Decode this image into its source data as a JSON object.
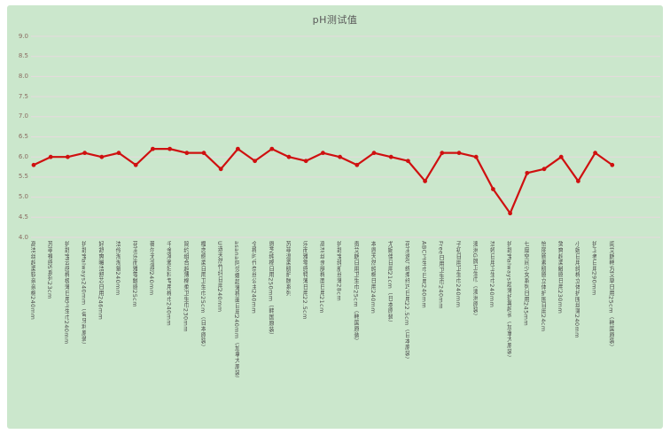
{
  "page": {
    "background": "#ffffff"
  },
  "panel": {
    "background": "#cbe7cc"
  },
  "chart_data": {
    "type": "line",
    "title": "pH测试值",
    "ylim": [
      4.0,
      9.0
    ],
    "y_tick_step": 0.5,
    "y_tick_labels": [
      "9.0",
      "8.5",
      "8.0",
      "7.5",
      "7.0",
      "6.5",
      "6.0",
      "5.5",
      "5.0",
      "4.5",
      "4.0"
    ],
    "grid": true,
    "legend": "none",
    "categories": [
      "高洁丝超柔软亲亲棉240mm",
      "苏菲裸感S系列23cm",
      "护舒宝云感棉极薄日用卫生巾240mm",
      "护舒宝always240mm（匈牙利原装）",
      "好舒爽暖洁舒芯日用246mm",
      "洁伶淘淘氧240mm",
      "花王乐而雅零触感25cm",
      "薇尔无湿感240mm",
      "千金净雅妇科专用棉巾240mm",
      "简约组合超薄棉柔卫生巾230mm",
      "樱恋绵柔日用卫生巾25cm（日本原装）",
      "U选天然竹纤日用240mm",
      "asana阿莎娜超薄棉面日用240mm（加拿大原装）",
      "全棉时代奈丝公主240mm",
      "恩芝纯棉日用250mm（韩国原装）",
      "苏菲温柔肌护肤系列",
      "乐而雅零感特薄日用22.5cm",
      "高洁丝亲肤棉面日用21cm",
      "护舒宝纯肌丝薄28cm",
      "贵艾朗日用卫生巾25cm（韩国原装）",
      "本恩天然纯棉日用240mm",
      "尤妮佳日用21cm（日本原装）",
      "花王透气绵柔纤巧日用22.5cm（日本原装）",
      "ABC卫生巾日用240mm",
      "Free日用卫生巾240mm",
      "子初日用卫生巾240mm",
      "澳洲G牌卫生巾（澳洲原装）",
      "洁婷日用卫生巾240mm",
      "护舒宝always超薄护翼超长（加拿大原装）",
      "七度空间少女系列日用245mm",
      "怡丽新素肌感立体护围日用24cm",
      "笑爽超柔触感日用230mm",
      "小妮日用纯棉立体护围丝薄240mm",
      "护卫者日用290mm",
      "闺艾朗韩方艾草日用25cm（韩国原装）"
    ],
    "values": [
      5.8,
      6.0,
      6.0,
      6.1,
      6.0,
      6.1,
      5.8,
      6.2,
      6.2,
      6.1,
      6.1,
      5.7,
      6.2,
      5.9,
      6.2,
      6.0,
      5.9,
      6.1,
      6.0,
      5.8,
      6.1,
      6.0,
      5.9,
      5.4,
      6.1,
      6.1,
      6.0,
      5.2,
      4.6,
      5.6,
      5.7,
      6.0,
      5.4,
      6.1,
      5.8
    ],
    "colors": {
      "line": "#cf1010",
      "marker": "#cf1010",
      "grid": "#e7d9de",
      "title": "#595959",
      "y_tick_text": "#8a6a60",
      "x_label_text": "#4c4c4c",
      "panel_background": "#cbe7cc"
    }
  }
}
